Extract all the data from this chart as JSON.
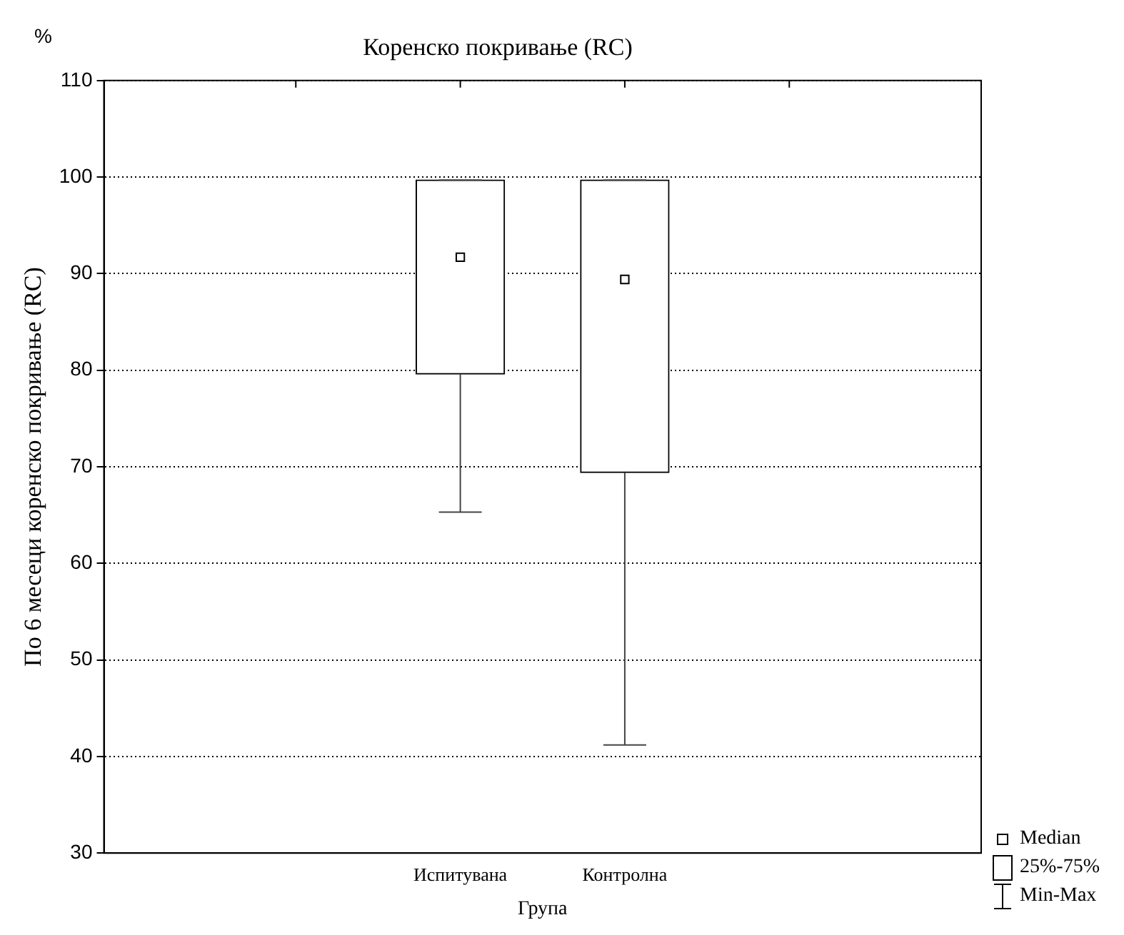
{
  "chart_data": {
    "type": "box",
    "title": "Коренско покривање (RC)",
    "xlabel": "Група",
    "ylabel": "По 6 месеци коренско покривање (RC)",
    "annotations": [
      "%",
      "Median",
      "25%-75%",
      "Min-Max"
    ],
    "categories": [
      "Испитувана",
      "Контролна"
    ],
    "boxes": [
      {
        "low": 65.3,
        "q1": 79.6,
        "median": 91.7,
        "q3": 99.7,
        "high": 99.7
      },
      {
        "low": 41.2,
        "q1": 69.4,
        "median": 89.4,
        "q3": 99.7,
        "high": 99.7
      }
    ],
    "ylim": [
      30,
      110
    ],
    "yticks": [
      30,
      40,
      50,
      60,
      70,
      80,
      90,
      100,
      110
    ],
    "grid": "y",
    "marker": "square"
  }
}
